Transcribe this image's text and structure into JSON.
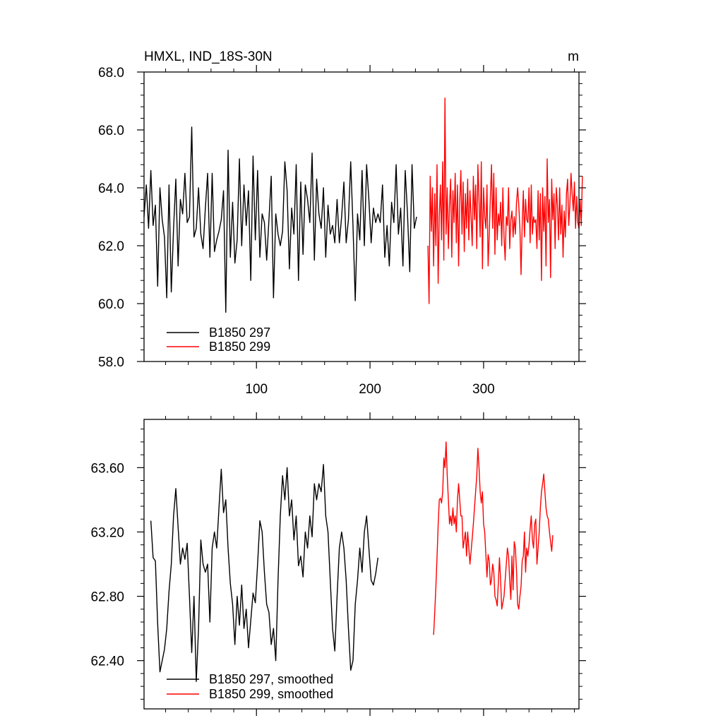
{
  "chart_data": [
    {
      "type": "line",
      "title": "HMXL, IND_18S-30N",
      "units": "m",
      "xlim": [
        1,
        384
      ],
      "ylim": [
        58.0,
        68.0
      ],
      "x_ticks": [
        100,
        200,
        300
      ],
      "x_tick_labels": [
        "100",
        "200",
        "300"
      ],
      "y_ticks": [
        58.0,
        60.0,
        62.0,
        64.0,
        66.0,
        68.0
      ],
      "y_tick_labels": [
        "58.0",
        "60.0",
        "62.0",
        "64.0",
        "66.0",
        "68.0"
      ],
      "legend_placement": "bottom-left",
      "series": [
        {
          "name": "B1850 297",
          "color": "#000000",
          "x_start": 1,
          "x_step": 2,
          "values": [
            63.0,
            64.1,
            62.6,
            64.6,
            62.7,
            63.4,
            60.6,
            64.0,
            62.9,
            62.3,
            60.2,
            64.1,
            60.4,
            62.6,
            64.3,
            61.3,
            63.6,
            63.1,
            64.5,
            62.8,
            63.0,
            66.1,
            62.3,
            62.6,
            64.0,
            62.4,
            61.9,
            63.3,
            64.5,
            61.6,
            64.5,
            61.8,
            62.2,
            62.5,
            62.9,
            63.9,
            59.7,
            65.3,
            61.6,
            63.5,
            61.4,
            62.2,
            65.0,
            62.0,
            64.1,
            62.7,
            63.9,
            60.8,
            65.1,
            62.2,
            64.6,
            61.6,
            63.1,
            62.8,
            61.5,
            62.9,
            64.4,
            60.2,
            63.1,
            62.4,
            62.0,
            62.5,
            64.9,
            63.9,
            61.2,
            63.3,
            62.4,
            64.8,
            60.8,
            64.2,
            61.7,
            64.1,
            63.6,
            62.8,
            65.2,
            61.5,
            64.3,
            63.1,
            62.6,
            64.0,
            61.6,
            63.4,
            62.4,
            62.7,
            62.1,
            63.6,
            62.1,
            63.0,
            64.2,
            62.1,
            62.9,
            64.9,
            62.7,
            60.1,
            63.1,
            62.2,
            64.6,
            62.0,
            64.8,
            63.6,
            62.1,
            63.3,
            62.8,
            63.1,
            62.8,
            64.1,
            61.6,
            62.7,
            61.3,
            63.5,
            62.8,
            64.8,
            62.4,
            63.3,
            61.3,
            64.6,
            63.1,
            61.1,
            64.8,
            62.6,
            63.0
          ]
        },
        {
          "name": "B1850 299",
          "color": "#ff0000",
          "x_start": 251,
          "x_step": 1,
          "values": [
            62.0,
            60.0,
            64.4,
            62.5,
            64.0,
            61.3,
            63.8,
            62.0,
            64.8,
            60.7,
            63.0,
            64.1,
            62.2,
            64.9,
            61.5,
            67.1,
            62.4,
            64.0,
            61.9,
            63.4,
            64.3,
            61.6,
            63.9,
            62.8,
            64.5,
            62.1,
            64.1,
            61.3,
            63.5,
            64.6,
            62.4,
            64.2,
            61.8,
            63.8,
            62.6,
            64.3,
            62.2,
            63.9,
            63.0,
            62.0,
            64.4,
            62.9,
            64.1,
            61.9,
            64.8,
            63.6,
            62.3,
            64.9,
            61.2,
            64.0,
            63.0,
            62.6,
            64.1,
            61.3,
            62.4,
            63.7,
            64.8,
            62.6,
            64.5,
            61.7,
            64.0,
            62.2,
            63.1,
            62.7,
            63.5,
            62.0,
            64.0,
            62.3,
            61.5,
            63.0,
            62.7,
            64.0,
            61.9,
            62.9,
            63.2,
            62.3,
            63.0,
            62.4,
            63.5,
            64.0,
            63.4,
            62.6,
            61.0,
            62.7,
            63.9,
            62.3,
            63.6,
            62.9,
            62.8,
            64.0,
            62.1,
            64.1,
            62.4,
            63.0,
            62.8,
            62.9,
            61.9,
            63.9,
            62.2,
            63.8,
            60.8,
            64.0,
            62.5,
            63.7,
            61.3,
            65.0,
            62.8,
            63.6,
            60.9,
            64.3,
            62.9,
            63.8,
            61.9,
            64.0,
            63.4,
            62.2,
            64.0,
            62.4,
            63.4,
            61.6,
            63.2,
            62.3,
            63.8,
            64.3,
            62.7,
            63.4,
            64.5,
            63.8,
            63.2,
            64.2,
            62.6,
            63.7,
            62.8,
            62.6,
            63.6,
            62.7,
            64.4
          ]
        }
      ]
    },
    {
      "type": "line",
      "xlim": [
        1,
        384
      ],
      "ylim": [
        62.1,
        63.9
      ],
      "x_ticks": [
        100,
        200,
        300
      ],
      "y_ticks": [
        62.4,
        62.8,
        63.2,
        63.6
      ],
      "y_tick_labels": [
        "62.40",
        "62.80",
        "63.20",
        "63.60"
      ],
      "legend_placement": "bottom-left",
      "series": [
        {
          "name": "B1850 297, smoothed",
          "color": "#000000",
          "x_start": 7,
          "x_step": 2,
          "values": [
            63.27,
            63.04,
            63.02,
            62.63,
            62.33,
            62.4,
            62.47,
            62.6,
            62.83,
            63.0,
            63.3,
            63.47,
            63.23,
            63.0,
            63.1,
            63.03,
            63.13,
            62.8,
            62.45,
            62.8,
            62.27,
            62.6,
            63.15,
            63.0,
            62.95,
            63.0,
            62.64,
            63.1,
            63.2,
            63.1,
            63.35,
            63.59,
            63.32,
            63.4,
            63.1,
            62.88,
            62.75,
            62.5,
            62.8,
            62.62,
            62.87,
            62.6,
            62.72,
            62.48,
            62.65,
            62.82,
            62.76,
            63.0,
            63.27,
            63.2,
            62.95,
            62.75,
            62.7,
            62.5,
            62.6,
            62.4,
            62.9,
            63.3,
            63.55,
            63.4,
            63.6,
            63.3,
            63.4,
            63.15,
            63.3,
            62.99,
            63.05,
            62.92,
            63.2,
            63.1,
            63.3,
            63.17,
            63.5,
            63.4,
            63.5,
            63.45,
            63.62,
            63.3,
            63.2,
            62.9,
            62.6,
            62.46,
            62.8,
            63.1,
            63.2,
            63.1,
            62.9,
            62.6,
            62.34,
            62.4,
            62.75,
            62.9,
            63.1,
            62.95,
            63.2,
            63.3,
            63.1,
            62.9,
            62.87,
            62.94,
            63.04
          ]
        },
        {
          "name": "B1850 299, smoothed",
          "color": "#ff0000",
          "x_start": 256,
          "x_step": 1,
          "values": [
            62.56,
            62.7,
            62.86,
            63.04,
            63.24,
            63.4,
            63.41,
            63.38,
            63.45,
            63.66,
            63.6,
            63.76,
            63.55,
            63.4,
            63.25,
            63.3,
            63.24,
            63.35,
            63.25,
            63.3,
            63.2,
            63.4,
            63.5,
            63.4,
            63.3,
            63.3,
            63.1,
            63.15,
            63.2,
            63.05,
            63.2,
            63.1,
            63.0,
            63.08,
            63.16,
            63.25,
            63.35,
            63.45,
            63.55,
            63.72,
            63.6,
            63.45,
            63.38,
            63.45,
            63.25,
            63.2,
            63.06,
            62.92,
            63.06,
            63.02,
            62.87,
            62.9,
            63.0,
            62.95,
            62.8,
            62.78,
            62.74,
            62.88,
            63.04,
            62.9,
            62.72,
            62.76,
            62.8,
            62.9,
            63.0,
            63.1,
            63.05,
            62.9,
            62.78,
            63.05,
            62.84,
            63.14,
            63.1,
            62.96,
            62.75,
            62.72,
            62.8,
            62.86,
            63.02,
            63.05,
            63.2,
            62.95,
            63.1,
            63.05,
            63.12,
            63.22,
            63.3,
            63.15,
            63.1,
            63.25,
            63.28,
            63.0,
            63.1,
            63.2,
            63.35,
            63.45,
            63.5,
            63.56,
            63.45,
            63.35,
            63.3,
            63.28,
            63.2,
            63.14,
            63.08,
            63.18
          ]
        }
      ]
    }
  ]
}
